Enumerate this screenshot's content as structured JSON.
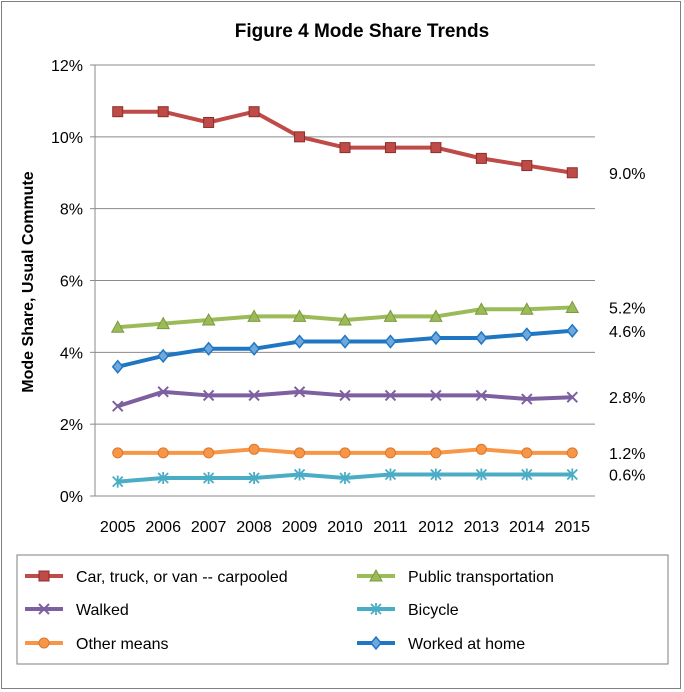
{
  "chart_data": {
    "type": "line",
    "title": "Figure 4  Mode Share Trends",
    "ylabel": "Mode Share, Usual Commute",
    "xlabel": "",
    "ylim": [
      0,
      12
    ],
    "yticks": [
      "0%",
      "2%",
      "4%",
      "6%",
      "8%",
      "10%",
      "12%"
    ],
    "categories": [
      "2005",
      "2006",
      "2007",
      "2008",
      "2009",
      "2010",
      "2011",
      "2012",
      "2013",
      "2014",
      "2015"
    ],
    "grid": true,
    "legend_position": "bottom",
    "series": [
      {
        "name": "Car, truck, or van -- carpooled",
        "color": "#be4b48",
        "marker": "square",
        "values": [
          10.7,
          10.7,
          10.4,
          10.7,
          10.0,
          9.7,
          9.7,
          9.7,
          9.4,
          9.2,
          9.0
        ],
        "end_label": "9.0%"
      },
      {
        "name": "Public transportation",
        "color": "#9bbb59",
        "marker": "triangle",
        "values": [
          4.7,
          4.8,
          4.9,
          5.0,
          5.0,
          4.9,
          5.0,
          5.0,
          5.2,
          5.2,
          5.25
        ],
        "end_label": "5.2%"
      },
      {
        "name": "Walked",
        "color": "#7d60a0",
        "marker": "x",
        "values": [
          2.5,
          2.9,
          2.8,
          2.8,
          2.9,
          2.8,
          2.8,
          2.8,
          2.8,
          2.7,
          2.75
        ],
        "end_label": "2.8%"
      },
      {
        "name": "Bicycle",
        "color": "#4bacc6",
        "marker": "star",
        "values": [
          0.4,
          0.5,
          0.5,
          0.5,
          0.6,
          0.5,
          0.6,
          0.6,
          0.6,
          0.6,
          0.6
        ],
        "end_label": "0.6%"
      },
      {
        "name": "Other means",
        "color": "#f79646",
        "marker": "circle",
        "values": [
          1.2,
          1.2,
          1.2,
          1.3,
          1.2,
          1.2,
          1.2,
          1.2,
          1.3,
          1.2,
          1.2
        ],
        "end_label": "1.2%"
      },
      {
        "name": "Worked at home",
        "color": "#1f77c4",
        "marker": "diamond",
        "values": [
          3.6,
          3.9,
          4.1,
          4.1,
          4.3,
          4.3,
          4.3,
          4.4,
          4.4,
          4.5,
          4.6
        ],
        "end_label": "4.6%"
      }
    ]
  }
}
